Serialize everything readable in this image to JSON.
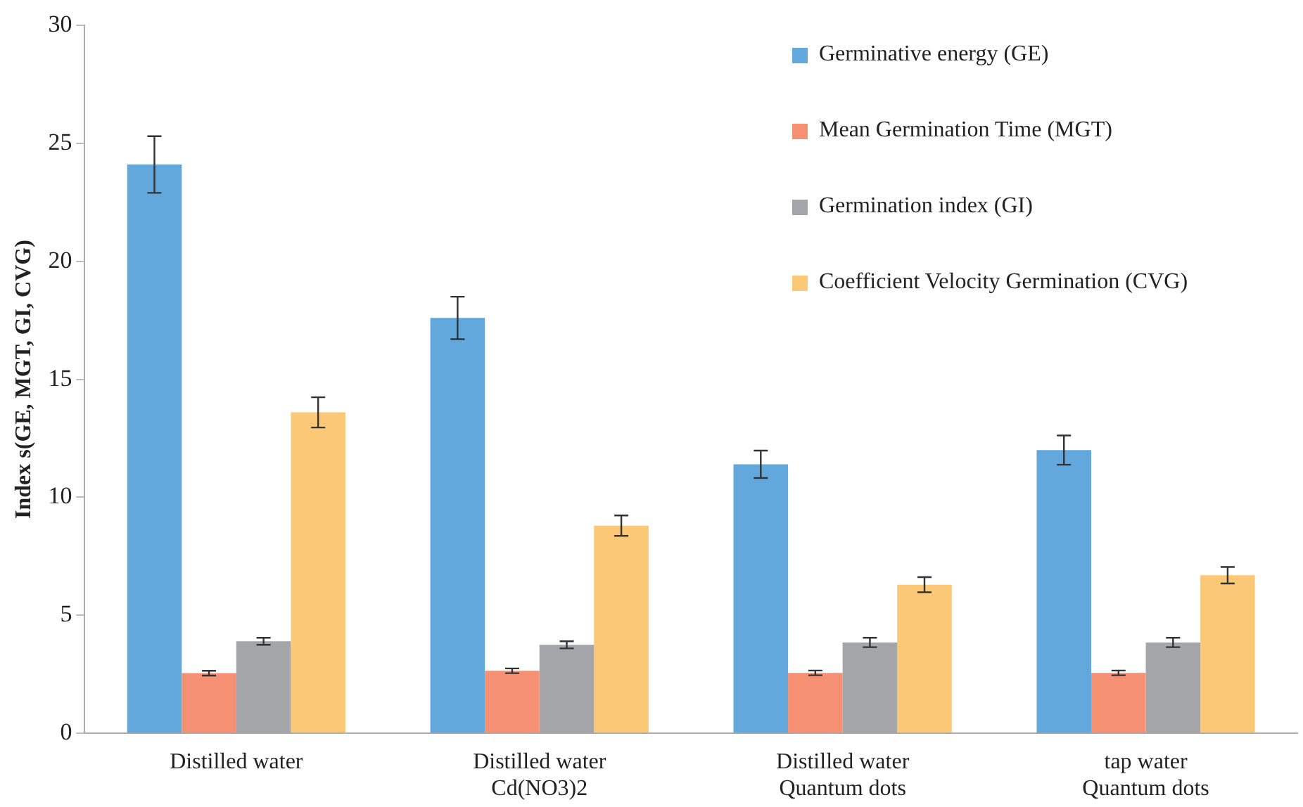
{
  "chart_data": {
    "type": "bar",
    "ylabel": "Index s(GE, MGT, GI, CVG)",
    "categories": [
      "Distilled water",
      "Distilled water\nCd(NO3)2",
      "Distilled water\nQuantum dots",
      "tap water\nQuantum dots"
    ],
    "series": [
      {
        "name": "Germinative energy (GE)",
        "color": "#62a8dc",
        "values": [
          24.1,
          17.6,
          11.4,
          12.0
        ],
        "errors": [
          1.2,
          0.9,
          0.58,
          0.62
        ]
      },
      {
        "name": "Mean Germination Time (MGT)",
        "color": "#f59172",
        "values": [
          2.55,
          2.65,
          2.56,
          2.56
        ],
        "errors": [
          0.1,
          0.1,
          0.1,
          0.1
        ]
      },
      {
        "name": "Germination index (GI)",
        "color": "#a3a5a8",
        "values": [
          3.9,
          3.75,
          3.85,
          3.85
        ],
        "errors": [
          0.15,
          0.15,
          0.2,
          0.2
        ]
      },
      {
        "name": "Coefficient Velocity Germination (CVG)",
        "color": "#fbc877",
        "values": [
          13.6,
          8.8,
          6.3,
          6.7
        ],
        "errors": [
          0.64,
          0.43,
          0.32,
          0.35
        ]
      }
    ],
    "ylim": [
      0,
      30
    ],
    "yticks": [
      0,
      5,
      10,
      15,
      20,
      25,
      30
    ],
    "grid": false,
    "legend": "top right"
  }
}
